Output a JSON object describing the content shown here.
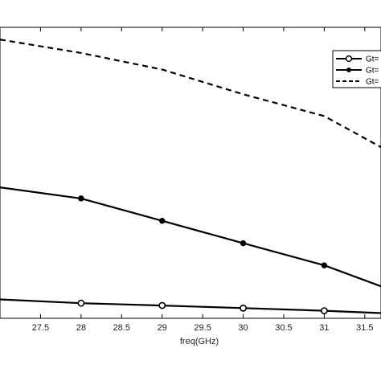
{
  "chart_data": {
    "type": "line",
    "title": "",
    "xlabel": "freq(GHz)",
    "ylabel": "",
    "xlim": [
      27.0,
      31.7
    ],
    "ylim": [
      0,
      1
    ],
    "xticks": [
      27.5,
      28,
      28.5,
      29,
      29.5,
      30,
      30.5,
      31,
      31.5
    ],
    "xtick_labels": [
      "27.5",
      "28",
      "28.5",
      "29",
      "29.5",
      "30",
      "30.5",
      "31",
      "31.5"
    ],
    "grid": false,
    "legend_position": "top-right",
    "series": [
      {
        "name": "Gt=",
        "marker": "open-circle",
        "line_style": "solid",
        "x": [
          27.0,
          28,
          29,
          30,
          31,
          31.7
        ],
        "y": [
          0.065,
          0.052,
          0.044,
          0.035,
          0.026,
          0.018
        ]
      },
      {
        "name": "Gt=",
        "marker": "filled-circle",
        "line_style": "solid",
        "x": [
          27.0,
          28,
          29,
          30,
          31,
          31.7
        ],
        "y": [
          0.45,
          0.412,
          0.335,
          0.258,
          0.182,
          0.11
        ]
      },
      {
        "name": "Gt=",
        "marker": "none",
        "line_style": "dashed",
        "x": [
          27.0,
          28,
          29,
          30,
          31,
          31.7
        ],
        "y": [
          0.958,
          0.912,
          0.855,
          0.77,
          0.695,
          0.588
        ]
      }
    ]
  }
}
